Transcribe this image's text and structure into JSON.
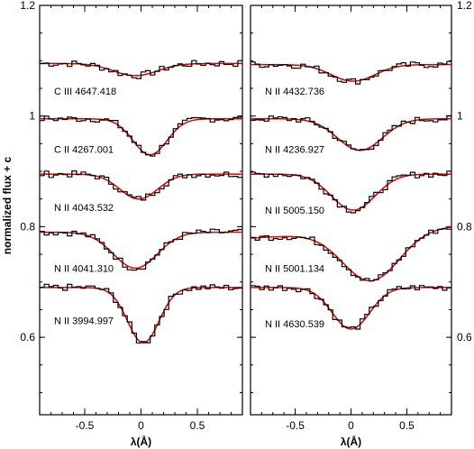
{
  "chart_data": {
    "type": "line",
    "ylabel": "normalized flux + c",
    "y_ticks": [
      "1.2",
      "1",
      "0.8",
      "0.6"
    ],
    "y_tick_values": [
      1.2,
      1.0,
      0.8,
      0.6
    ],
    "ylim": [
      0.46,
      1.2
    ],
    "grid": false,
    "colors": {
      "observed": "#000000",
      "model": "#e00000"
    },
    "panels": [
      {
        "xlabel": "λ(Å)",
        "xlim": [
          -0.9,
          0.9
        ],
        "x_ticks": [
          "-0.5",
          "0",
          "0.5"
        ],
        "x_tick_values": [
          -0.5,
          0,
          0.5
        ],
        "lines": [
          {
            "name": "C III 4647.418",
            "continuum": 1.095,
            "depth": 0.022,
            "center": -0.05,
            "width": 0.35,
            "skew": 0.0,
            "label_y": 1.045
          },
          {
            "name": "C II 4267.001",
            "continuum": 0.995,
            "depth": 0.065,
            "center": 0.08,
            "width": 0.27,
            "skew": 0.0,
            "label_y": 0.94
          },
          {
            "name": "N II 4043.532",
            "continuum": 0.895,
            "depth": 0.045,
            "center": -0.02,
            "width": 0.3,
            "skew": 0.0,
            "label_y": 0.835
          },
          {
            "name": "N II 4041.310",
            "continuum": 0.79,
            "depth": 0.065,
            "center": -0.05,
            "width": 0.35,
            "skew": 0.0,
            "label_y": 0.725
          },
          {
            "name": "N II 3994.997",
            "continuum": 0.69,
            "depth": 0.1,
            "center": 0.02,
            "width": 0.25,
            "skew": 0.0,
            "label_y": 0.63
          }
        ]
      },
      {
        "xlabel": "λ(Å)",
        "xlim": [
          -0.9,
          0.9
        ],
        "x_ticks": [
          "-0.5",
          "0",
          "0.5"
        ],
        "x_tick_values": [
          -0.5,
          0,
          0.5
        ],
        "lines": [
          {
            "name": "N II 4432.736",
            "continuum": 1.093,
            "depth": 0.03,
            "center": 0.02,
            "width": 0.35,
            "skew": 0.0,
            "label_y": 1.045
          },
          {
            "name": "N II 4236.927",
            "continuum": 0.995,
            "depth": 0.057,
            "center": 0.08,
            "width": 0.36,
            "skew": 0.0,
            "label_y": 0.94
          },
          {
            "name": "N II 5005.150",
            "continuum": 0.895,
            "depth": 0.065,
            "center": 0.02,
            "width": 0.35,
            "skew": 0.0,
            "label_y": 0.83
          },
          {
            "name": "N II 5001.134",
            "continuum": 0.79,
            "depth": 0.09,
            "center": 0.18,
            "width": 0.45,
            "skew": 0.012,
            "label_y": 0.725
          },
          {
            "name": "N II 4630.539",
            "continuum": 0.69,
            "depth": 0.075,
            "center": 0.0,
            "width": 0.3,
            "skew": 0.0,
            "label_y": 0.625
          }
        ]
      }
    ]
  }
}
